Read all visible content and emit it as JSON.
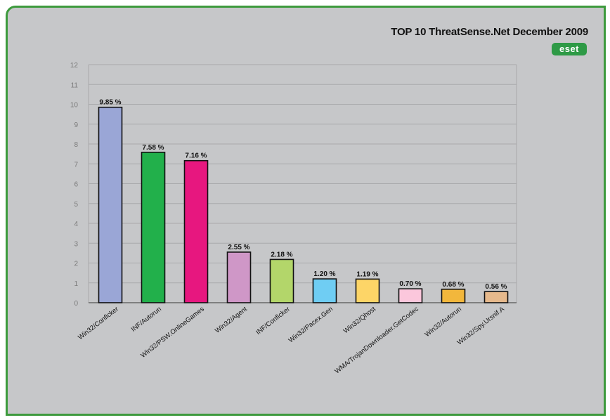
{
  "chart_data": {
    "type": "bar",
    "title": "TOP 10 ThreatSense.Net December 2009",
    "brand": "eset",
    "categories": [
      "Win32/Conficker",
      "INF/Autorun",
      "Win32/PSW.OnlineGames",
      "Win32/Agent",
      "INF/Conficker",
      "Win32/Pacex.Gen",
      "Win32/Qhost",
      "WMA/TrojanDownloader.GetCodec",
      "Win32/Autorun",
      "Win32/Spy.Ursnif.A"
    ],
    "values": [
      9.85,
      7.58,
      7.16,
      2.55,
      2.18,
      1.2,
      1.19,
      0.7,
      0.68,
      0.56
    ],
    "value_labels": [
      "9.85 %",
      "7.58 %",
      "7.16 %",
      "2.55 %",
      "2.18 %",
      "1.20 %",
      "1.19 %",
      "0.70 %",
      "0.68 %",
      "0.56 %"
    ],
    "colors": [
      "#9aa6d6",
      "#22b04b",
      "#e7177f",
      "#cf97c7",
      "#b3d66a",
      "#6fcdf3",
      "#fdd567",
      "#fbc7dc",
      "#f2b73c",
      "#e6b98c"
    ],
    "yticks": [
      0,
      1,
      2,
      3,
      4,
      5,
      6,
      7,
      8,
      9,
      10,
      11,
      12
    ],
    "ylim": [
      0,
      12
    ],
    "grid": true,
    "xlabel": "",
    "ylabel": ""
  }
}
